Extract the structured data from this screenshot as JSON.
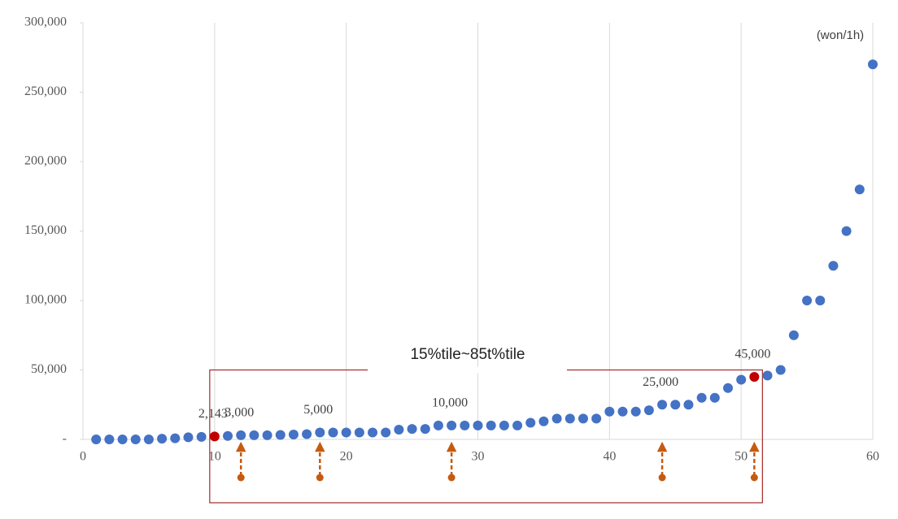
{
  "chart_data": {
    "type": "scatter",
    "unit_label": "(won/1h)",
    "band_label": "15%tile~85t%tile",
    "x": [
      1,
      2,
      3,
      4,
      5,
      6,
      7,
      8,
      9,
      10,
      11,
      12,
      13,
      14,
      15,
      16,
      17,
      18,
      19,
      20,
      21,
      22,
      23,
      24,
      25,
      26,
      27,
      28,
      29,
      30,
      31,
      32,
      33,
      34,
      35,
      36,
      37,
      38,
      39,
      40,
      41,
      42,
      43,
      44,
      45,
      46,
      47,
      48,
      49,
      50,
      51,
      52,
      53,
      54,
      55,
      56,
      57,
      58,
      59,
      60
    ],
    "values": [
      0,
      0,
      0,
      0,
      0,
      500,
      800,
      1500,
      1800,
      2143,
      2500,
      3000,
      3000,
      3000,
      3200,
      3500,
      3800,
      5000,
      5000,
      5000,
      5000,
      5000,
      5000,
      7000,
      7500,
      7500,
      10000,
      10000,
      10000,
      10000,
      10000,
      10000,
      10000,
      12000,
      13000,
      15000,
      15000,
      15000,
      15000,
      20000,
      20000,
      20000,
      21000,
      25000,
      25000,
      25000,
      30000,
      30000,
      37000,
      43000,
      45000,
      46000,
      50000,
      75000,
      100000,
      100000,
      125000,
      150000,
      180000,
      270000
    ],
    "value_labels": [
      null,
      null,
      null,
      null,
      null,
      null,
      null,
      null,
      null,
      "2,143",
      null,
      "3,000",
      null,
      null,
      null,
      null,
      null,
      "5,000",
      null,
      null,
      null,
      null,
      null,
      null,
      null,
      null,
      null,
      "10,000",
      null,
      null,
      null,
      null,
      null,
      null,
      null,
      null,
      null,
      null,
      null,
      null,
      null,
      null,
      null,
      "25,000",
      null,
      null,
      null,
      null,
      null,
      null,
      "45,000",
      null,
      null,
      null,
      null,
      null,
      null,
      null,
      null,
      null
    ],
    "color": "#4472c4",
    "highlight": [
      10,
      51
    ],
    "highlight_color": "#c00000",
    "arrow_x": [
      12,
      18,
      28,
      44,
      51
    ],
    "arrow_color": "#c55a11",
    "band_color": "#a52a2a",
    "xlim": [
      0,
      60
    ],
    "xticks": [
      0,
      10,
      20,
      30,
      40,
      50,
      60
    ],
    "ylim": [
      0,
      300000
    ],
    "yticks": [
      {
        "value": 0,
        "label": "-"
      },
      {
        "value": 50000,
        "label": "50,000"
      },
      {
        "value": 100000,
        "label": "100,000"
      },
      {
        "value": 150000,
        "label": "150,000"
      },
      {
        "value": 200000,
        "label": "200,000"
      },
      {
        "value": 250000,
        "label": "250,000"
      },
      {
        "value": 300000,
        "label": "300,000"
      }
    ],
    "grid": "x"
  }
}
